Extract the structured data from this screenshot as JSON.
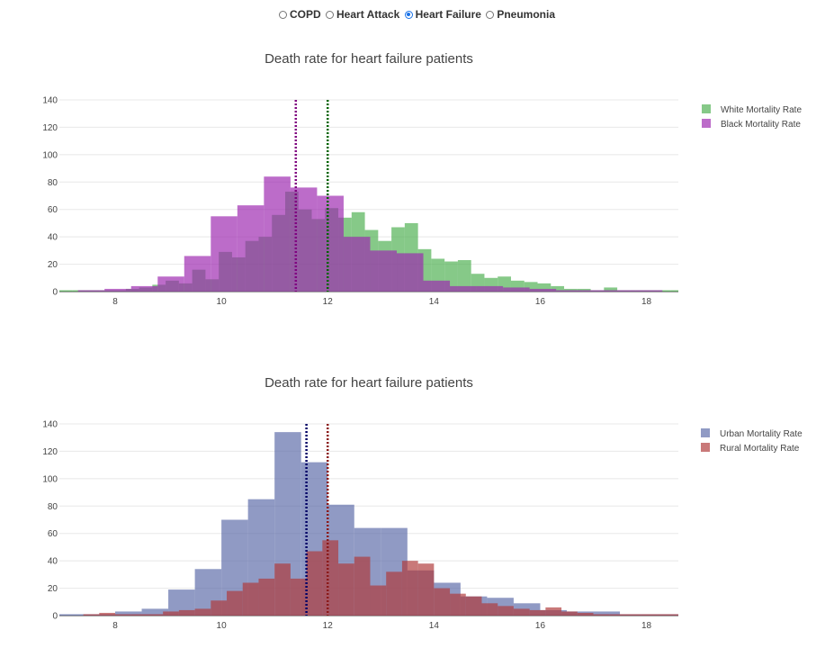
{
  "disease_selector": {
    "options": [
      {
        "label": "COPD",
        "checked": false
      },
      {
        "label": "Heart Attack",
        "checked": false
      },
      {
        "label": "Heart Failure",
        "checked": true
      },
      {
        "label": "Pneumonia",
        "checked": false
      }
    ]
  },
  "chart_data": [
    {
      "type": "bar",
      "title": "Death rate for heart failure patients",
      "xlabel": "",
      "ylabel": "",
      "xlim": [
        6.95,
        18.6
      ],
      "ylim": [
        0,
        140
      ],
      "x_ticks": [
        8,
        10,
        12,
        14,
        16,
        18
      ],
      "y_ticks": [
        0,
        20,
        40,
        60,
        80,
        100,
        120,
        140
      ],
      "grid": "horizontal",
      "legend_position": "top-right",
      "series": [
        {
          "name": "White Mortality Rate",
          "color": "#4caf50",
          "bins": [
            [
              6.95,
              7.2,
              1
            ],
            [
              7.2,
              7.45,
              1
            ],
            [
              7.45,
              7.7,
              1
            ],
            [
              7.7,
              7.95,
              1
            ],
            [
              7.95,
              8.2,
              1
            ],
            [
              8.2,
              8.45,
              2
            ],
            [
              8.45,
              8.7,
              3
            ],
            [
              8.7,
              8.95,
              5
            ],
            [
              8.95,
              9.2,
              8
            ],
            [
              9.2,
              9.45,
              6
            ],
            [
              9.45,
              9.7,
              16
            ],
            [
              9.7,
              9.95,
              9
            ],
            [
              9.95,
              10.2,
              29
            ],
            [
              10.2,
              10.45,
              25
            ],
            [
              10.45,
              10.7,
              37
            ],
            [
              10.7,
              10.95,
              40
            ],
            [
              10.95,
              11.2,
              56
            ],
            [
              11.2,
              11.45,
              73
            ],
            [
              11.45,
              11.7,
              60
            ],
            [
              11.7,
              11.95,
              53
            ],
            [
              11.95,
              12.2,
              61
            ],
            [
              12.2,
              12.45,
              54
            ],
            [
              12.45,
              12.7,
              58
            ],
            [
              12.7,
              12.95,
              45
            ],
            [
              12.95,
              13.2,
              37
            ],
            [
              13.2,
              13.45,
              47
            ],
            [
              13.45,
              13.7,
              50
            ],
            [
              13.7,
              13.95,
              31
            ],
            [
              13.95,
              14.2,
              24
            ],
            [
              14.2,
              14.45,
              22
            ],
            [
              14.45,
              14.7,
              23
            ],
            [
              14.7,
              14.95,
              13
            ],
            [
              14.95,
              15.2,
              10
            ],
            [
              15.2,
              15.45,
              11
            ],
            [
              15.45,
              15.7,
              8
            ],
            [
              15.7,
              15.95,
              7
            ],
            [
              15.95,
              16.2,
              6
            ],
            [
              16.2,
              16.45,
              4
            ],
            [
              16.45,
              16.7,
              2
            ],
            [
              16.7,
              16.95,
              2
            ],
            [
              16.95,
              17.2,
              1
            ],
            [
              17.2,
              17.45,
              3
            ],
            [
              17.45,
              17.7,
              1
            ],
            [
              17.7,
              17.95,
              1
            ],
            [
              17.95,
              18.2,
              1
            ],
            [
              18.2,
              18.45,
              1
            ],
            [
              18.45,
              18.6,
              1
            ]
          ]
        },
        {
          "name": "Black Mortality Rate",
          "color": "#9c27b0",
          "bins": [
            [
              7.3,
              7.8,
              1
            ],
            [
              7.8,
              8.3,
              2
            ],
            [
              8.3,
              8.8,
              4
            ],
            [
              8.8,
              9.3,
              11
            ],
            [
              9.3,
              9.8,
              26
            ],
            [
              9.8,
              10.3,
              55
            ],
            [
              10.3,
              10.8,
              63
            ],
            [
              10.8,
              11.3,
              84
            ],
            [
              11.3,
              11.8,
              76
            ],
            [
              11.8,
              12.3,
              70
            ],
            [
              12.3,
              12.8,
              40
            ],
            [
              12.8,
              13.3,
              30
            ],
            [
              13.3,
              13.8,
              28
            ],
            [
              13.8,
              14.3,
              8
            ],
            [
              14.3,
              14.8,
              4
            ],
            [
              14.8,
              15.3,
              4
            ],
            [
              15.3,
              15.8,
              3
            ],
            [
              15.8,
              16.3,
              2
            ],
            [
              16.3,
              16.8,
              1
            ],
            [
              16.8,
              17.3,
              1
            ],
            [
              17.3,
              17.8,
              1
            ],
            [
              17.8,
              18.3,
              1
            ]
          ]
        }
      ],
      "mean_lines": [
        {
          "value": 12.0,
          "color": "#006400"
        },
        {
          "value": 11.4,
          "color": "#800080"
        }
      ]
    },
    {
      "type": "bar",
      "title": "Death rate for heart failure patients",
      "xlabel": "",
      "ylabel": "",
      "xlim": [
        6.95,
        18.6
      ],
      "ylim": [
        0,
        140
      ],
      "x_ticks": [
        8,
        10,
        12,
        14,
        16,
        18
      ],
      "y_ticks": [
        0,
        20,
        40,
        60,
        80,
        100,
        120,
        140
      ],
      "grid": "horizontal",
      "legend_position": "top-right",
      "series": [
        {
          "name": "Urban Mortality Rate",
          "color": "#5c6aa8",
          "bins": [
            [
              6.95,
              7.5,
              1
            ],
            [
              7.5,
              8.0,
              1
            ],
            [
              8.0,
              8.5,
              3
            ],
            [
              8.5,
              9.0,
              5
            ],
            [
              9.0,
              9.5,
              19
            ],
            [
              9.5,
              10.0,
              34
            ],
            [
              10.0,
              10.5,
              70
            ],
            [
              10.5,
              11.0,
              85
            ],
            [
              11.0,
              11.5,
              134
            ],
            [
              11.5,
              12.0,
              112
            ],
            [
              12.0,
              12.5,
              81
            ],
            [
              12.5,
              13.0,
              64
            ],
            [
              13.0,
              13.5,
              64
            ],
            [
              13.5,
              14.0,
              33
            ],
            [
              14.0,
              14.5,
              24
            ],
            [
              14.5,
              15.0,
              14
            ],
            [
              15.0,
              15.5,
              13
            ],
            [
              15.5,
              16.0,
              9
            ],
            [
              16.0,
              16.5,
              4
            ],
            [
              16.5,
              17.0,
              3
            ],
            [
              17.0,
              17.5,
              3
            ],
            [
              17.5,
              18.0,
              1
            ],
            [
              18.0,
              18.6,
              1
            ]
          ]
        },
        {
          "name": "Rural Mortality Rate",
          "color": "#b03a3a",
          "bins": [
            [
              7.4,
              7.7,
              1
            ],
            [
              7.7,
              8.0,
              2
            ],
            [
              8.0,
              8.3,
              1
            ],
            [
              8.3,
              8.6,
              1
            ],
            [
              8.6,
              8.9,
              1
            ],
            [
              8.9,
              9.2,
              3
            ],
            [
              9.2,
              9.5,
              4
            ],
            [
              9.5,
              9.8,
              5
            ],
            [
              9.8,
              10.1,
              11
            ],
            [
              10.1,
              10.4,
              18
            ],
            [
              10.4,
              10.7,
              24
            ],
            [
              10.7,
              11.0,
              27
            ],
            [
              11.0,
              11.3,
              38
            ],
            [
              11.3,
              11.6,
              27
            ],
            [
              11.6,
              11.9,
              47
            ],
            [
              11.9,
              12.2,
              55
            ],
            [
              12.2,
              12.5,
              38
            ],
            [
              12.5,
              12.8,
              43
            ],
            [
              12.8,
              13.1,
              22
            ],
            [
              13.1,
              13.4,
              32
            ],
            [
              13.4,
              13.7,
              40
            ],
            [
              13.7,
              14.0,
              38
            ],
            [
              14.0,
              14.3,
              20
            ],
            [
              14.3,
              14.6,
              16
            ],
            [
              14.6,
              14.9,
              14
            ],
            [
              14.9,
              15.2,
              9
            ],
            [
              15.2,
              15.5,
              7
            ],
            [
              15.5,
              15.8,
              5
            ],
            [
              15.8,
              16.1,
              4
            ],
            [
              16.1,
              16.4,
              6
            ],
            [
              16.4,
              16.7,
              3
            ],
            [
              16.7,
              17.0,
              2
            ],
            [
              17.0,
              17.3,
              1
            ],
            [
              17.3,
              17.6,
              1
            ],
            [
              17.6,
              17.9,
              1
            ],
            [
              17.9,
              18.2,
              1
            ],
            [
              18.2,
              18.6,
              1
            ]
          ]
        }
      ],
      "mean_lines": [
        {
          "value": 11.6,
          "color": "#000066"
        },
        {
          "value": 12.0,
          "color": "#8b1a1a"
        }
      ]
    }
  ]
}
